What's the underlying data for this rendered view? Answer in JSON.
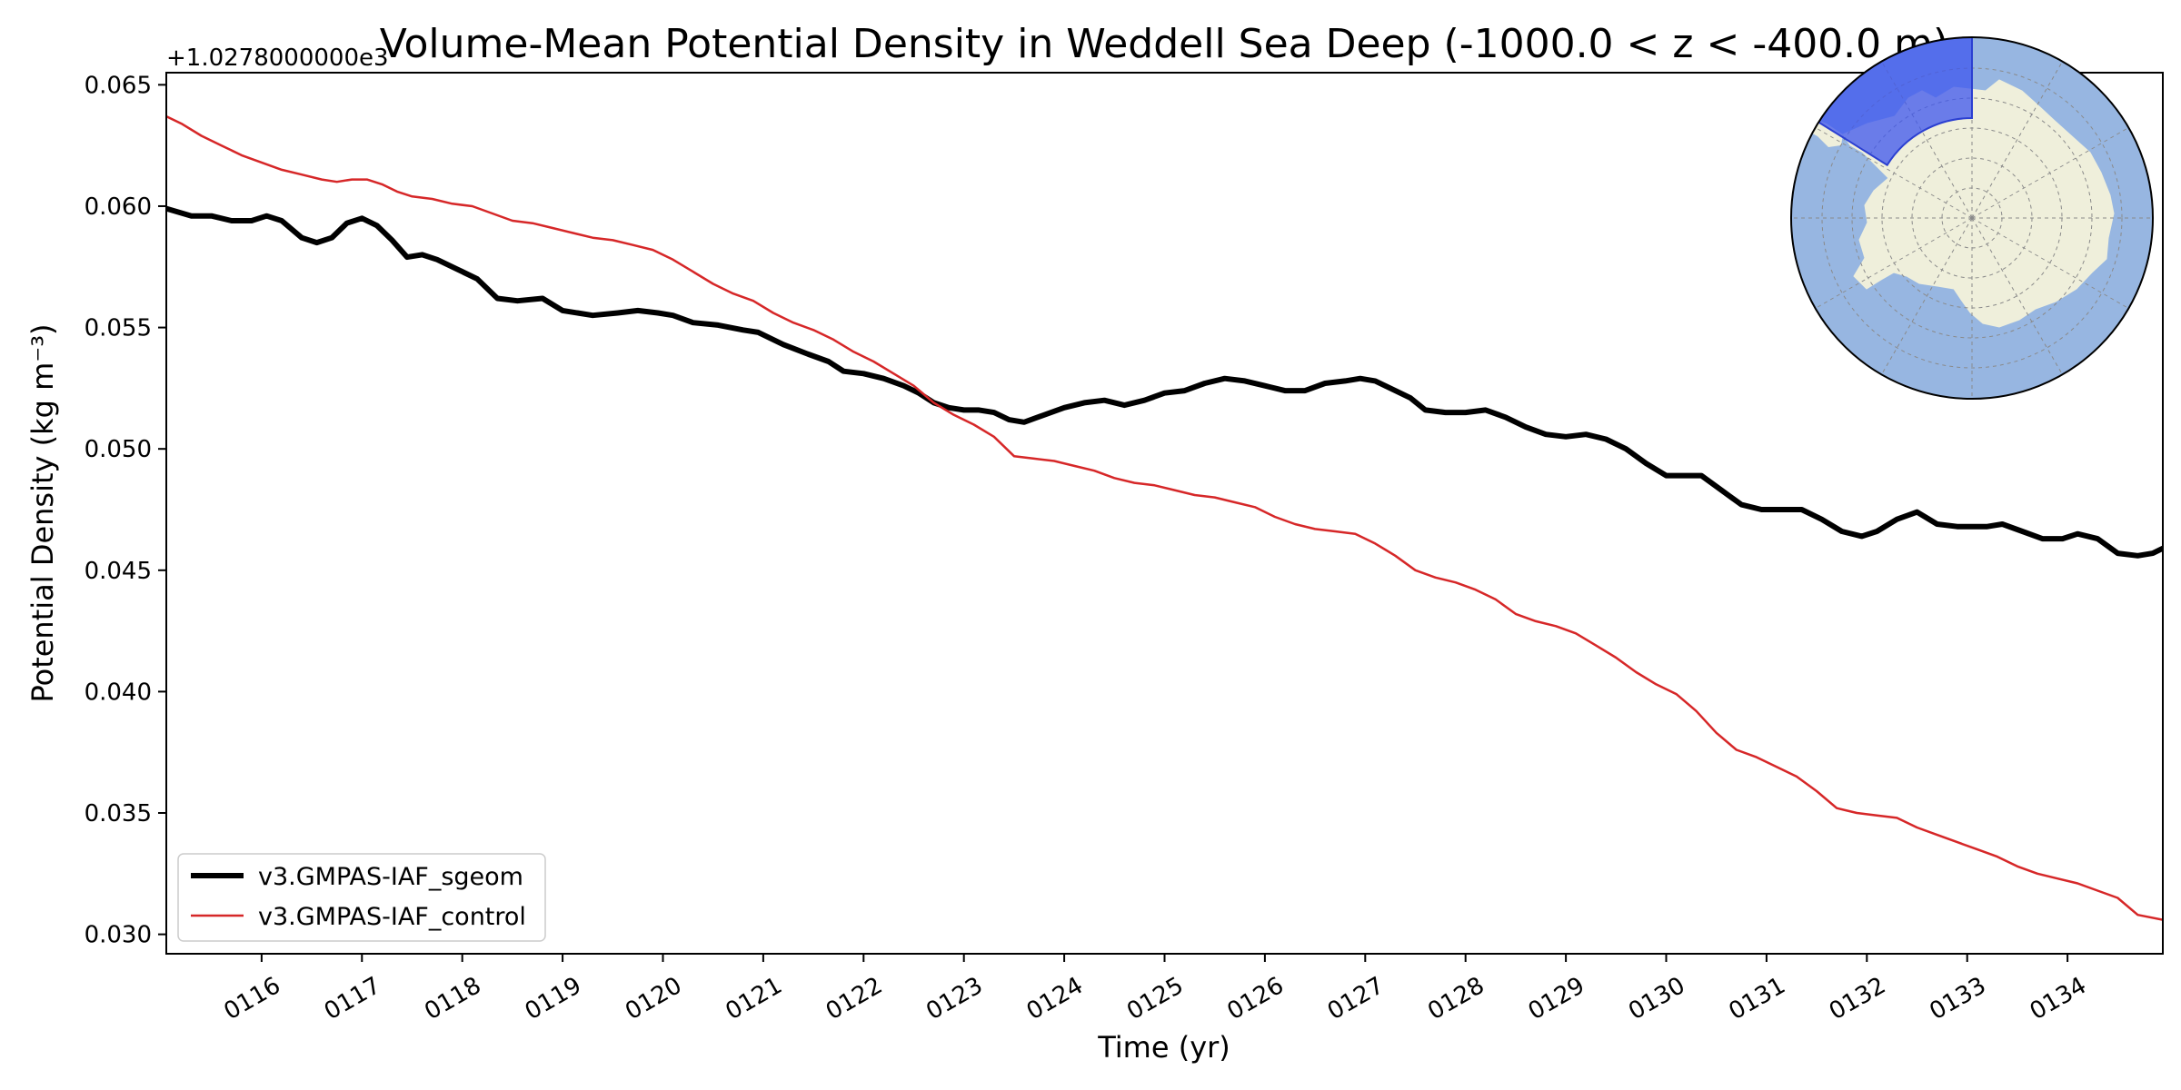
{
  "chart_data": {
    "type": "line",
    "title": "Volume-Mean Potential Density in Weddell Sea Deep (-1000.0 < z < -400.0 m)",
    "xlabel": "Time (yr)",
    "ylabel": "Potential Density (kg m⁻³)",
    "y_offset_label": "+1.0278000000e3",
    "xlim": [
      115.05,
      134.95
    ],
    "ylim": [
      0.0292,
      0.0655
    ],
    "x_ticks": [
      116,
      117,
      118,
      119,
      120,
      121,
      122,
      123,
      124,
      125,
      126,
      127,
      128,
      129,
      130,
      131,
      132,
      133,
      134
    ],
    "x_tick_labels": [
      "0116",
      "0117",
      "0118",
      "0119",
      "0120",
      "0121",
      "0122",
      "0123",
      "0124",
      "0125",
      "0126",
      "0127",
      "0128",
      "0129",
      "0130",
      "0131",
      "0132",
      "0133",
      "0134"
    ],
    "y_ticks": [
      0.03,
      0.035,
      0.04,
      0.045,
      0.05,
      0.055,
      0.06,
      0.065
    ],
    "y_tick_labels": [
      "0.030",
      "0.035",
      "0.040",
      "0.045",
      "0.050",
      "0.055",
      "0.060",
      "0.065"
    ],
    "grid": false,
    "legend_position": "lower-left",
    "series": [
      {
        "name": "v3.GMPAS-IAF_sgeom",
        "color": "#000000",
        "style": "thick",
        "x": [
          115.05,
          115.3,
          115.5,
          115.7,
          115.9,
          116.05,
          116.2,
          116.4,
          116.55,
          116.7,
          116.85,
          117.0,
          117.15,
          117.3,
          117.45,
          117.6,
          117.75,
          117.95,
          118.15,
          118.35,
          118.55,
          118.8,
          119.0,
          119.3,
          119.55,
          119.75,
          119.95,
          120.1,
          120.3,
          120.55,
          120.8,
          120.95,
          121.2,
          121.45,
          121.65,
          121.8,
          122.0,
          122.2,
          122.4,
          122.55,
          122.7,
          122.85,
          123.0,
          123.15,
          123.3,
          123.45,
          123.6,
          123.8,
          124.0,
          124.2,
          124.4,
          124.6,
          124.8,
          125.0,
          125.2,
          125.4,
          125.6,
          125.8,
          126.0,
          126.2,
          126.4,
          126.6,
          126.8,
          126.95,
          127.1,
          127.3,
          127.45,
          127.6,
          127.8,
          128.0,
          128.2,
          128.4,
          128.6,
          128.8,
          129.0,
          129.2,
          129.4,
          129.6,
          129.8,
          130.0,
          130.2,
          130.35,
          130.55,
          130.75,
          130.95,
          131.15,
          131.35,
          131.55,
          131.75,
          131.95,
          132.1,
          132.3,
          132.5,
          132.7,
          132.9,
          133.05,
          133.2,
          133.35,
          133.55,
          133.75,
          133.95,
          134.1,
          134.3,
          134.5,
          134.7,
          134.85,
          134.95
        ],
        "values": [
          0.0599,
          0.0596,
          0.0596,
          0.0594,
          0.0594,
          0.0596,
          0.0594,
          0.0587,
          0.0585,
          0.0587,
          0.0593,
          0.0595,
          0.0592,
          0.0586,
          0.0579,
          0.058,
          0.0578,
          0.0574,
          0.057,
          0.0562,
          0.0561,
          0.0562,
          0.0557,
          0.0555,
          0.0556,
          0.0557,
          0.0556,
          0.0555,
          0.0552,
          0.0551,
          0.0549,
          0.0548,
          0.0543,
          0.0539,
          0.0536,
          0.0532,
          0.0531,
          0.0529,
          0.0526,
          0.0523,
          0.0519,
          0.0517,
          0.0516,
          0.0516,
          0.0515,
          0.0512,
          0.0511,
          0.0514,
          0.0517,
          0.0519,
          0.052,
          0.0518,
          0.052,
          0.0523,
          0.0524,
          0.0527,
          0.0529,
          0.0528,
          0.0526,
          0.0524,
          0.0524,
          0.0527,
          0.0528,
          0.0529,
          0.0528,
          0.0524,
          0.0521,
          0.0516,
          0.0515,
          0.0515,
          0.0516,
          0.0513,
          0.0509,
          0.0506,
          0.0505,
          0.0506,
          0.0504,
          0.05,
          0.0494,
          0.0489,
          0.0489,
          0.0489,
          0.0483,
          0.0477,
          0.0475,
          0.0475,
          0.0475,
          0.0471,
          0.0466,
          0.0464,
          0.0466,
          0.0471,
          0.0474,
          0.0469,
          0.0468,
          0.0468,
          0.0468,
          0.0469,
          0.0466,
          0.0463,
          0.0463,
          0.0465,
          0.0463,
          0.0457,
          0.0456,
          0.0457,
          0.0459
        ]
      },
      {
        "name": "v3.GMPAS-IAF_control",
        "color": "#d62728",
        "style": "thin",
        "x": [
          115.05,
          115.2,
          115.4,
          115.6,
          115.8,
          116.0,
          116.2,
          116.4,
          116.6,
          116.75,
          116.9,
          117.05,
          117.2,
          117.35,
          117.5,
          117.7,
          117.9,
          118.1,
          118.3,
          118.5,
          118.7,
          118.9,
          119.1,
          119.3,
          119.5,
          119.7,
          119.9,
          120.1,
          120.3,
          120.5,
          120.7,
          120.9,
          121.1,
          121.3,
          121.5,
          121.7,
          121.9,
          122.1,
          122.3,
          122.5,
          122.7,
          122.9,
          123.1,
          123.3,
          123.5,
          123.7,
          123.9,
          124.1,
          124.3,
          124.5,
          124.7,
          124.9,
          125.1,
          125.3,
          125.5,
          125.7,
          125.9,
          126.1,
          126.3,
          126.5,
          126.7,
          126.9,
          127.1,
          127.3,
          127.5,
          127.7,
          127.9,
          128.1,
          128.3,
          128.5,
          128.7,
          128.9,
          129.1,
          129.3,
          129.5,
          129.7,
          129.9,
          130.1,
          130.3,
          130.5,
          130.7,
          130.9,
          131.1,
          131.3,
          131.5,
          131.7,
          131.9,
          132.1,
          132.3,
          132.5,
          132.7,
          132.9,
          133.1,
          133.3,
          133.5,
          133.7,
          133.9,
          134.1,
          134.3,
          134.5,
          134.7,
          134.95
        ],
        "values": [
          0.0637,
          0.0634,
          0.0629,
          0.0625,
          0.0621,
          0.0618,
          0.0615,
          0.0613,
          0.0611,
          0.061,
          0.0611,
          0.0611,
          0.0609,
          0.0606,
          0.0604,
          0.0603,
          0.0601,
          0.06,
          0.0597,
          0.0594,
          0.0593,
          0.0591,
          0.0589,
          0.0587,
          0.0586,
          0.0584,
          0.0582,
          0.0578,
          0.0573,
          0.0568,
          0.0564,
          0.0561,
          0.0556,
          0.0552,
          0.0549,
          0.0545,
          0.054,
          0.0536,
          0.0531,
          0.0526,
          0.0519,
          0.0514,
          0.051,
          0.0505,
          0.0497,
          0.0496,
          0.0495,
          0.0493,
          0.0491,
          0.0488,
          0.0486,
          0.0485,
          0.0483,
          0.0481,
          0.048,
          0.0478,
          0.0476,
          0.0472,
          0.0469,
          0.0467,
          0.0466,
          0.0465,
          0.0461,
          0.0456,
          0.045,
          0.0447,
          0.0445,
          0.0442,
          0.0438,
          0.0432,
          0.0429,
          0.0427,
          0.0424,
          0.0419,
          0.0414,
          0.0408,
          0.0403,
          0.0399,
          0.0392,
          0.0383,
          0.0376,
          0.0373,
          0.0369,
          0.0365,
          0.0359,
          0.0352,
          0.035,
          0.0349,
          0.0348,
          0.0344,
          0.0341,
          0.0338,
          0.0335,
          0.0332,
          0.0328,
          0.0325,
          0.0323,
          0.0321,
          0.0318,
          0.0315,
          0.0308,
          0.0306
        ]
      }
    ],
    "inset_map": {
      "projection": "south-polar-stereographic",
      "ocean_color": "#97b6e1",
      "land_color": "#efefdb",
      "region_color": "#3d55ee",
      "region": "Weddell Sea"
    }
  }
}
